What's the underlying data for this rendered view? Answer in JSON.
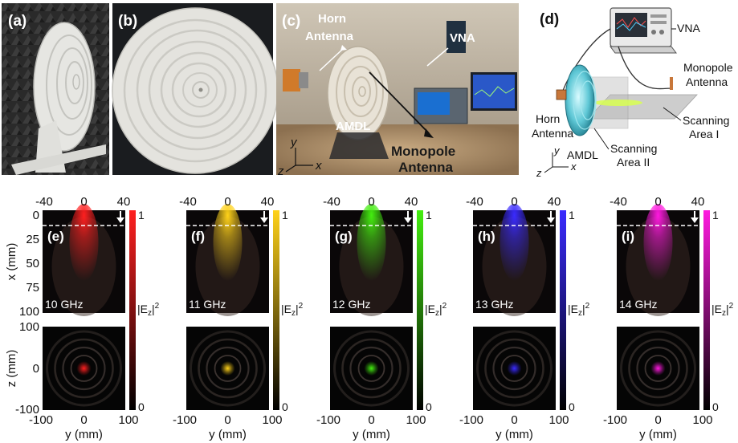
{
  "top_row": {
    "panel_a": {
      "label": "(a)"
    },
    "panel_b": {
      "label": "(b)"
    },
    "panel_c": {
      "label": "(c)",
      "callouts": [
        "Horn",
        "Antenna",
        "VNA",
        "AMDL",
        "Monopole",
        "Antenna"
      ],
      "axis_labels": [
        "y",
        "z",
        "x"
      ]
    },
    "panel_d": {
      "label": "(d)",
      "callouts": [
        "VNA",
        "Monopole",
        "Antenna",
        "Horn",
        "Antenna",
        "Scanning",
        "Area I",
        "Scanning",
        "Area II",
        "AMDL"
      ],
      "axis_labels": [
        "y",
        "z",
        "x"
      ]
    }
  },
  "field_maps": {
    "top_x_ticks": [
      "-40",
      "0",
      "40"
    ],
    "x_axis_label": "x (mm)",
    "x_ticks": [
      "0",
      "25",
      "50",
      "75",
      "100"
    ],
    "z_axis_label": "z (mm)",
    "z_ticks": [
      "100",
      "0",
      "-100"
    ],
    "y_axis_label": "y (mm)",
    "y_ticks": [
      "-100",
      "0",
      "100"
    ],
    "colorbar_label": "|E",
    "colorbar_sub": "z",
    "colorbar_sup": "2",
    "colorbar_max": "1",
    "colorbar_min": "0",
    "panels": [
      {
        "label": "(e)",
        "freq": "10 GHz",
        "color": "#ff2020"
      },
      {
        "label": "(f)",
        "freq": "11 GHz",
        "color": "#ffd21a"
      },
      {
        "label": "(g)",
        "freq": "12 GHz",
        "color": "#44ee10"
      },
      {
        "label": "(h)",
        "freq": "13 GHz",
        "color": "#3a2bff"
      },
      {
        "label": "(i)",
        "freq": "14 GHz",
        "color": "#ff1adf"
      }
    ]
  }
}
